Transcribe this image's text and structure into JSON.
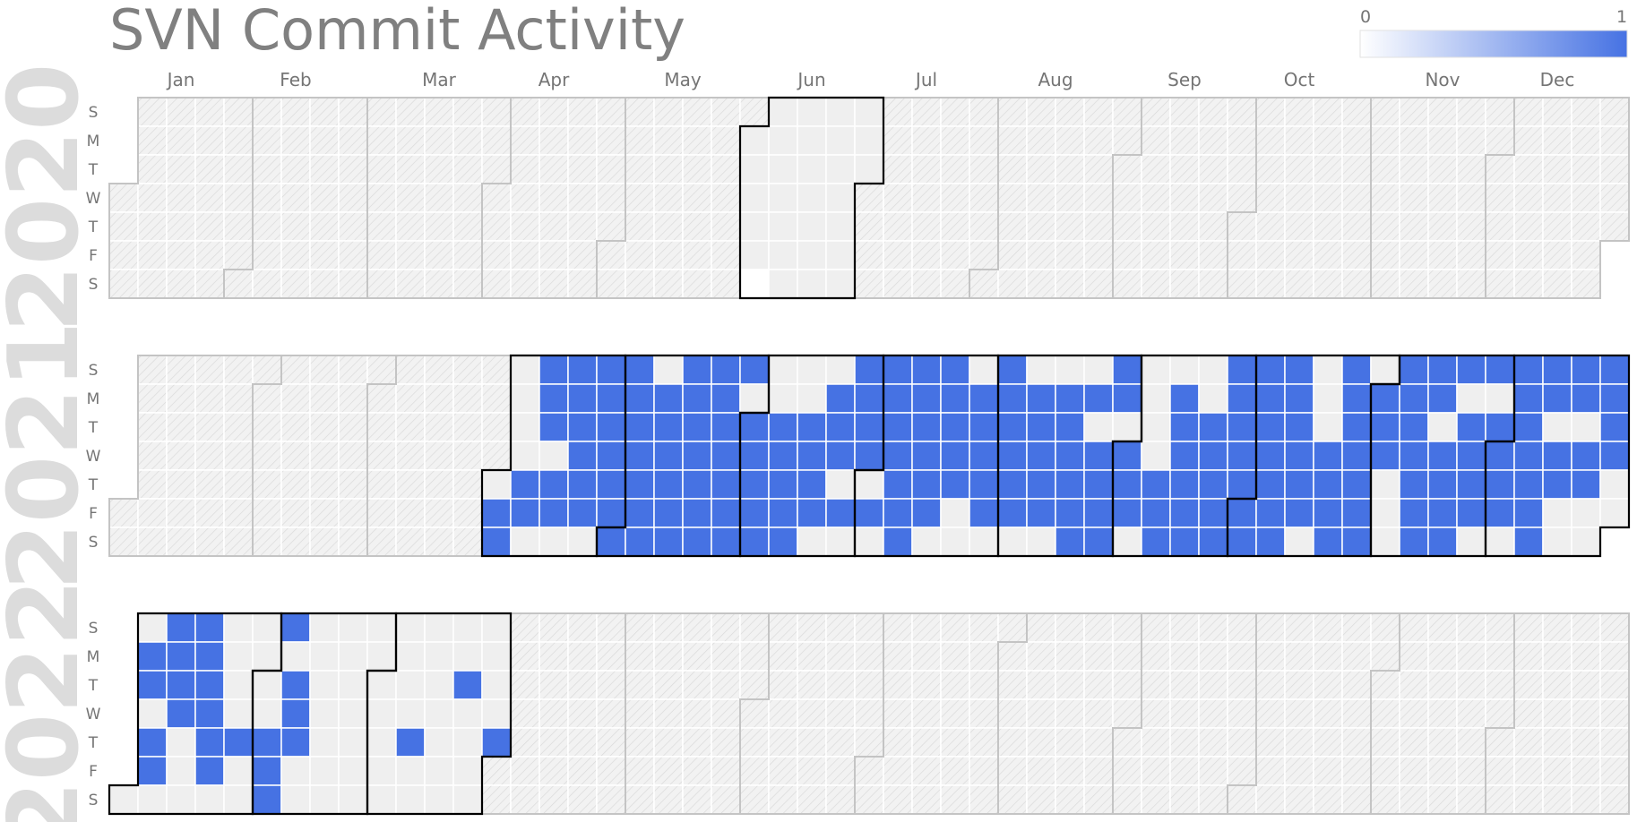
{
  "chart_data": {
    "type": "heatmap",
    "title": "SVN Commit Activity",
    "legend": {
      "min_label": "0",
      "max_label": "1",
      "min_color": "#ffffff",
      "max_color": "#4672e3",
      "placement": "top-right"
    },
    "colors": {
      "active": "#4672e3",
      "zero": "#ffffff",
      "empty": "#efefef",
      "outline": "#000000",
      "month_outline": "#c4c4c4"
    },
    "day_labels": [
      "S",
      "M",
      "T",
      "W",
      "T",
      "F",
      "S"
    ],
    "month_labels": [
      "Jan",
      "Feb",
      "Mar",
      "Apr",
      "May",
      "Jun",
      "Jul",
      "Aug",
      "Sep",
      "Oct",
      "Nov",
      "Dec"
    ],
    "years": [
      {
        "year": "2020",
        "active_dates": [],
        "zero_dates": [
          "2020-06-06"
        ],
        "range": [
          "2020-06-01",
          "2020-06-30"
        ]
      },
      {
        "year": "2021",
        "active_dates": [
          "2021-04-02",
          "2021-04-03",
          "2021-04-08",
          "2021-04-09",
          "2021-04-11",
          "2021-04-12",
          "2021-04-13",
          "2021-04-15",
          "2021-04-16",
          "2021-04-18",
          "2021-04-19",
          "2021-04-20",
          "2021-04-21",
          "2021-04-22",
          "2021-04-23",
          "2021-04-25",
          "2021-04-26",
          "2021-04-27",
          "2021-04-28",
          "2021-04-29",
          "2021-04-30",
          "2021-05-01",
          "2021-05-02",
          "2021-05-03",
          "2021-05-04",
          "2021-05-05",
          "2021-05-06",
          "2021-05-07",
          "2021-05-08",
          "2021-05-10",
          "2021-05-11",
          "2021-05-12",
          "2021-05-13",
          "2021-05-14",
          "2021-05-15",
          "2021-05-16",
          "2021-05-17",
          "2021-05-18",
          "2021-05-19",
          "2021-05-20",
          "2021-05-21",
          "2021-05-22",
          "2021-05-23",
          "2021-05-24",
          "2021-05-25",
          "2021-05-26",
          "2021-05-27",
          "2021-05-28",
          "2021-05-29",
          "2021-05-30",
          "2021-06-01",
          "2021-06-02",
          "2021-06-03",
          "2021-06-04",
          "2021-06-05",
          "2021-06-08",
          "2021-06-09",
          "2021-06-10",
          "2021-06-11",
          "2021-06-12",
          "2021-06-15",
          "2021-06-16",
          "2021-06-17",
          "2021-06-18",
          "2021-06-21",
          "2021-06-22",
          "2021-06-23",
          "2021-06-25",
          "2021-06-27",
          "2021-06-28",
          "2021-06-29",
          "2021-06-30",
          "2021-07-02",
          "2021-07-04",
          "2021-07-05",
          "2021-07-06",
          "2021-07-07",
          "2021-07-08",
          "2021-07-09",
          "2021-07-10",
          "2021-07-11",
          "2021-07-12",
          "2021-07-13",
          "2021-07-14",
          "2021-07-15",
          "2021-07-16",
          "2021-07-18",
          "2021-07-19",
          "2021-07-20",
          "2021-07-21",
          "2021-07-22",
          "2021-07-26",
          "2021-07-27",
          "2021-07-28",
          "2021-07-29",
          "2021-07-30",
          "2021-08-01",
          "2021-08-02",
          "2021-08-03",
          "2021-08-04",
          "2021-08-05",
          "2021-08-06",
          "2021-08-09",
          "2021-08-10",
          "2021-08-11",
          "2021-08-12",
          "2021-08-13",
          "2021-08-16",
          "2021-08-17",
          "2021-08-18",
          "2021-08-19",
          "2021-08-20",
          "2021-08-21",
          "2021-08-23",
          "2021-08-25",
          "2021-08-26",
          "2021-08-27",
          "2021-08-28",
          "2021-08-29",
          "2021-08-30",
          "2021-09-01",
          "2021-09-02",
          "2021-09-03",
          "2021-09-09",
          "2021-09-10",
          "2021-09-11",
          "2021-09-13",
          "2021-09-14",
          "2021-09-15",
          "2021-09-16",
          "2021-09-17",
          "2021-09-18",
          "2021-09-21",
          "2021-09-22",
          "2021-09-23",
          "2021-09-24",
          "2021-09-25",
          "2021-09-26",
          "2021-09-27",
          "2021-09-28",
          "2021-09-29",
          "2021-09-30",
          "2021-10-01",
          "2021-10-02",
          "2021-10-03",
          "2021-10-04",
          "2021-10-05",
          "2021-10-06",
          "2021-10-07",
          "2021-10-08",
          "2021-10-09",
          "2021-10-10",
          "2021-10-11",
          "2021-10-12",
          "2021-10-13",
          "2021-10-14",
          "2021-10-15",
          "2021-10-20",
          "2021-10-21",
          "2021-10-22",
          "2021-10-23",
          "2021-10-24",
          "2021-10-25",
          "2021-10-26",
          "2021-10-27",
          "2021-10-28",
          "2021-10-29",
          "2021-10-30",
          "2021-11-01",
          "2021-11-02",
          "2021-11-03",
          "2021-11-07",
          "2021-11-08",
          "2021-11-09",
          "2021-11-10",
          "2021-11-11",
          "2021-11-12",
          "2021-11-13",
          "2021-11-14",
          "2021-11-15",
          "2021-11-17",
          "2021-11-18",
          "2021-11-19",
          "2021-11-20",
          "2021-11-21",
          "2021-11-23",
          "2021-11-24",
          "2021-11-25",
          "2021-11-26",
          "2021-11-28",
          "2021-11-30",
          "2021-12-01",
          "2021-12-02",
          "2021-12-03",
          "2021-12-05",
          "2021-12-06",
          "2021-12-07",
          "2021-12-08",
          "2021-12-09",
          "2021-12-10",
          "2021-12-11",
          "2021-12-12",
          "2021-12-13",
          "2021-12-15",
          "2021-12-16",
          "2021-12-19",
          "2021-12-20",
          "2021-12-22",
          "2021-12-23",
          "2021-12-26",
          "2021-12-27",
          "2021-12-28",
          "2021-12-29"
        ],
        "zero_dates": [],
        "range": [
          "2021-04-01",
          "2021-12-31"
        ]
      },
      {
        "year": "2022",
        "active_dates": [
          "2022-01-03",
          "2022-01-04",
          "2022-01-06",
          "2022-01-07",
          "2022-01-09",
          "2022-01-10",
          "2022-01-11",
          "2022-01-12",
          "2022-01-16",
          "2022-01-17",
          "2022-01-18",
          "2022-01-19",
          "2022-01-20",
          "2022-01-21",
          "2022-01-27",
          "2022-02-03",
          "2022-02-04",
          "2022-02-05",
          "2022-02-06",
          "2022-02-08",
          "2022-02-09",
          "2022-02-10",
          "2022-03-10",
          "2022-03-22",
          "2022-03-31"
        ],
        "zero_dates": [],
        "range": [
          "2022-01-01",
          "2022-03-31"
        ]
      }
    ]
  }
}
